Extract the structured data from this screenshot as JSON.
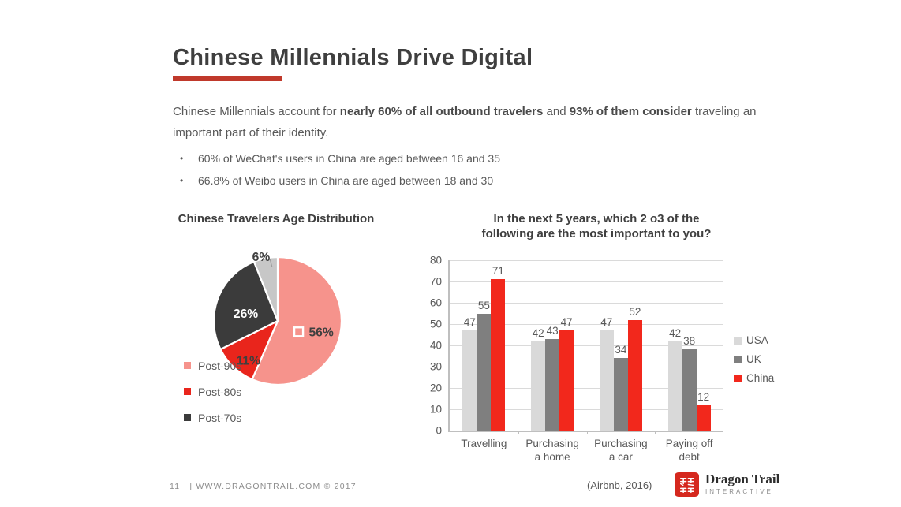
{
  "slide": {
    "title": "Chinese Millennials Drive Digital",
    "colors": {
      "accent": "#c0392b",
      "heading": "#3f3f3f",
      "body_text": "#595959"
    },
    "intro": {
      "seg1": "Chinese Millennials account for ",
      "bold1": "nearly 60% of all outbound travelers",
      "seg2": " and ",
      "bold2": "93% of them consider",
      "seg3": " traveling an important part of their identity."
    },
    "bullet_char": "•",
    "bullets": [
      "60% of WeChat's users in China are aged between 16 and 35",
      "66.8% of Weibo users in China are aged between 18 and 30"
    ],
    "footer": {
      "page_number": "11",
      "site": "| WWW.DRAGONTRAIL.COM © 2017",
      "logo_name": "Dragon Trail",
      "logo_sub": "INTERACTIVE"
    }
  },
  "chart_data": [
    {
      "type": "pie",
      "title": "Chinese Travelers Age Distribution",
      "start_angle_deg": 0,
      "clockwise": true,
      "slices": [
        {
          "label": "Post-90s",
          "value": 56,
          "color": "#f6938c",
          "text": "56%",
          "text_color": "#3f3f3f",
          "lx": 0.26,
          "ly": 0.17,
          "marker": true
        },
        {
          "label": "Post-80s",
          "value": 11,
          "color": "#e9251c",
          "text": "11%",
          "text_color": "#3f3f3f",
          "lx": -0.46,
          "ly": 0.62
        },
        {
          "label": "Post-70s",
          "value": 26,
          "color": "#3b3b3b",
          "text": "26%",
          "text_color": "#ffffff",
          "lx": -0.5,
          "ly": -0.12
        },
        {
          "label": "",
          "value": 6,
          "color": "#c7c7c7",
          "text": "6%",
          "text_color": "#3f3f3f",
          "lx": -0.26,
          "ly": -1.01,
          "leader": true
        }
      ],
      "legend": [
        {
          "label": "Post-90s",
          "color": "#f6938c"
        },
        {
          "label": "Post-80s",
          "color": "#e9251c"
        },
        {
          "label": "Post-70s",
          "color": "#3b3b3b"
        }
      ]
    },
    {
      "type": "bar",
      "title": "In the next 5 years, which 2 o3 of the\nfollowing are the most important to you?",
      "categories": [
        "Travelling",
        "Purchasing\na home",
        "Purchasing\na car",
        "Paying off\ndebt"
      ],
      "series": [
        {
          "name": "USA",
          "color": "#d9d9d9",
          "values": [
            47,
            42,
            47,
            42
          ]
        },
        {
          "name": "UK",
          "color": "#7f7f7f",
          "values": [
            55,
            43,
            34,
            38
          ]
        },
        {
          "name": "China",
          "color": "#f2281c",
          "values": [
            71,
            47,
            52,
            12
          ]
        }
      ],
      "ylim": [
        0,
        80
      ],
      "ytick_step": 10,
      "grid": true,
      "legend_position": "right",
      "source_note": "(Airbnb, 2016)"
    }
  ]
}
